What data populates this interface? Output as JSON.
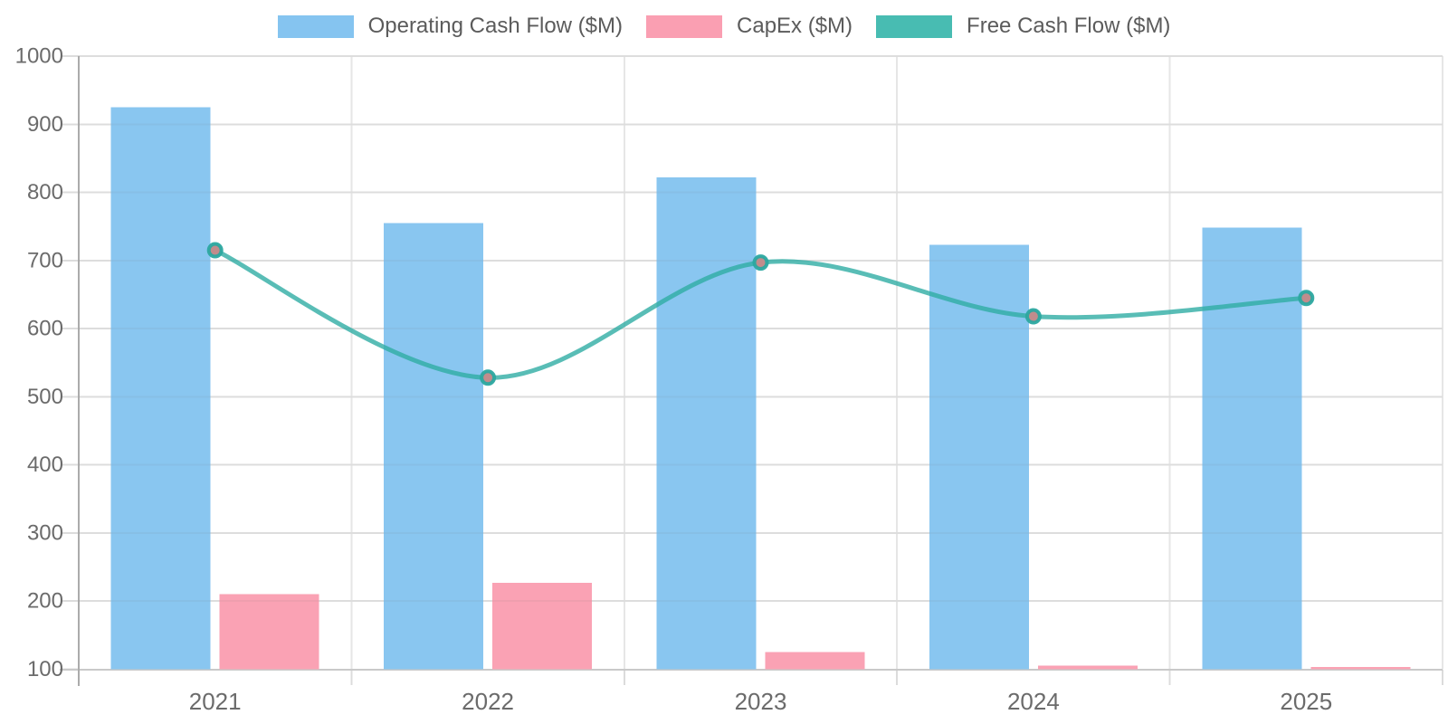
{
  "chart_data": {
    "type": "bar+line",
    "categories": [
      "2021",
      "2022",
      "2023",
      "2024",
      "2025"
    ],
    "series": [
      {
        "name": "Operating Cash Flow ($M)",
        "type": "bar",
        "color": "#85C4F0",
        "values": [
          925,
          755,
          822,
          723,
          748
        ]
      },
      {
        "name": "CapEx ($M)",
        "type": "bar",
        "color": "#FA9FB2",
        "values": [
          210,
          227,
          125,
          105,
          103
        ]
      },
      {
        "name": "Free Cash Flow ($M)",
        "type": "line",
        "color": "#48BCB2",
        "values": [
          715,
          528,
          697,
          618,
          645
        ]
      }
    ],
    "title": "",
    "xlabel": "",
    "ylabel": "",
    "ylim": [
      100,
      1000
    ],
    "ytick_step": 100,
    "grid": true,
    "legend_position": "top"
  },
  "style": {
    "grid_color": "#E6E6E6",
    "grid_overlay": "rgba(110,110,110,0.08)",
    "y_axis_color": "#ABABAB",
    "x_axis_color": "#C9C9C9",
    "tick_color": "#DCDCDC",
    "tick_label_color": "#6B6B6B",
    "line_stroke": "rgba(47,172,164,0.8)",
    "marker_ring": "rgba(43,168,160,0.95)",
    "marker_fill": "#C18C8C"
  }
}
